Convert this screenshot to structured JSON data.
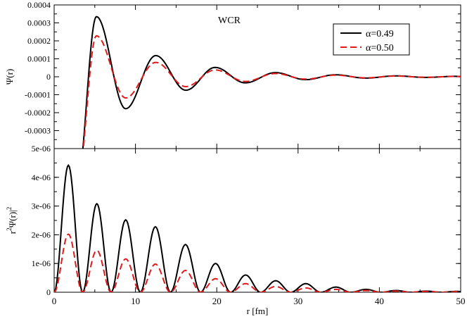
{
  "chart_data": [
    {
      "type": "line",
      "panel": "top",
      "title": "WCR",
      "xlabel": "",
      "ylabel": "Ψ(r)",
      "xlim": [
        0,
        50
      ],
      "ylim": [
        -0.0004,
        0.0004
      ],
      "yticks": [
        "-0.0003",
        "-0.0002",
        "-0.0001",
        "0",
        "0.0001",
        "0.0002",
        "0.0003",
        "0.0004"
      ],
      "ytick_values": [
        -0.0003,
        -0.0002,
        -0.0001,
        0,
        0.0001,
        0.0002,
        0.0003,
        0.0004
      ],
      "grid": false,
      "legend": "top-right",
      "series": [
        {
          "name": "α=0.49",
          "color": "#000000",
          "dash": "solid",
          "x": [
            2.8,
            5.2,
            8.8,
            12.5,
            16.2,
            19.8,
            23.5,
            27.2,
            30.9,
            34.6,
            38.3,
            42.0,
            45.7,
            49.4
          ],
          "peaks": [
            -0.0006,
            0.000335,
            -0.000178,
            0.000118,
            -7.5e-05,
            5.2e-05,
            -3.4e-05,
            2.3e-05,
            -1.6e-05,
            1.1e-05,
            -7.5e-06,
            5e-06,
            -3.5e-06,
            2.5e-06
          ]
        },
        {
          "name": "α=0.50",
          "color": "#e31a1c",
          "dash": "dashed",
          "x": [
            2.8,
            5.2,
            8.8,
            12.5,
            16.2,
            19.8,
            23.5,
            27.2,
            30.9,
            34.6,
            38.3,
            42.0,
            45.7,
            49.4
          ],
          "peaks": [
            -0.0006,
            0.000228,
            -0.000118,
            8e-05,
            -5.5e-05,
            3.8e-05,
            -2.6e-05,
            1.8e-05,
            -1.3e-05,
            9e-06,
            -6e-06,
            4e-06,
            -2.8e-06,
            2e-06
          ]
        }
      ]
    },
    {
      "type": "line",
      "panel": "bottom",
      "xlabel": "r [fm]",
      "ylabel": "r²Ψ(r)|²",
      "ylabel_parts": {
        "pre": "r",
        "pre_sup": "2",
        "mid": "Ψ(r)|",
        "post_sup": "2"
      },
      "xlim": [
        0,
        50
      ],
      "ylim": [
        0,
        5e-06
      ],
      "xticks": [
        "0",
        "10",
        "20",
        "30",
        "40",
        "50"
      ],
      "xtick_values": [
        0,
        10,
        20,
        30,
        40,
        50
      ],
      "yticks": [
        "0",
        "1e-06",
        "2e-06",
        "3e-06",
        "4e-06",
        "5e-06"
      ],
      "ytick_values": [
        0,
        1e-06,
        2e-06,
        3e-06,
        4e-06,
        5e-06
      ],
      "grid": false,
      "series": [
        {
          "name": "α=0.49",
          "color": "#000000",
          "dash": "solid",
          "zeros": [
            0,
            3.5,
            7.0,
            10.6,
            14.3,
            18.0,
            21.7,
            25.4,
            29.1,
            32.8,
            36.5,
            40.2,
            43.9,
            47.6,
            51.3
          ],
          "peaks": [
            4.42e-06,
            3.08e-06,
            2.52e-06,
            2.28e-06,
            1.66e-06,
            1e-06,
            6e-07,
            4e-07,
            3e-07,
            1.8e-07,
            1e-07,
            6e-08,
            4e-08,
            3e-08
          ]
        },
        {
          "name": "α=0.50",
          "color": "#e31a1c",
          "dash": "dashed",
          "zeros": [
            0,
            3.5,
            7.0,
            10.6,
            14.3,
            18.0,
            21.7,
            25.4,
            29.1,
            32.8,
            36.5,
            40.2,
            43.9,
            47.6,
            51.3
          ],
          "peaks": [
            2.02e-06,
            1.46e-06,
            1.16e-06,
            9.8e-07,
            7.6e-07,
            4.7e-07,
            3e-07,
            2e-07,
            1.5e-07,
            1e-07,
            6e-08,
            4e-08,
            3e-08,
            2e-08
          ]
        }
      ]
    }
  ]
}
